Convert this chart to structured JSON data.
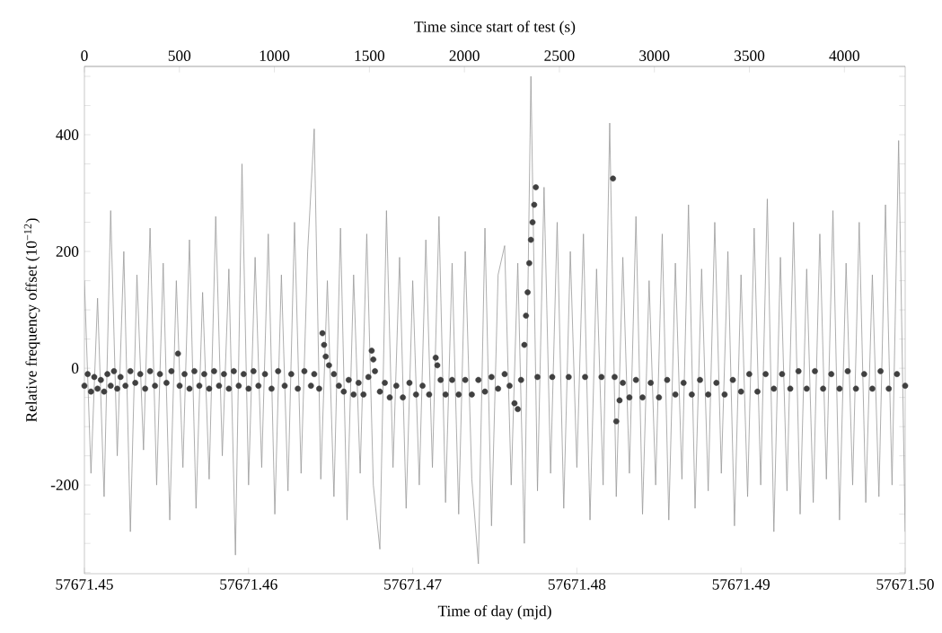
{
  "chart_data": {
    "type": "line",
    "xlabel": "Time of day (mjd)",
    "ylabel": "Relative frequency offset (10$^{−12}$)",
    "x2label": "Time since start of test (s)",
    "xlim": [
      57671.45,
      57671.5
    ],
    "xticks": [
      57671.45,
      57671.46,
      57671.47,
      57671.48,
      57671.49,
      {
        "value": 57671.5,
        "label": "57671.50"
      }
    ],
    "x2lim": [
      0,
      4320
    ],
    "x2ticks": [
      0,
      500,
      1000,
      1500,
      2000,
      2500,
      3000,
      3500,
      4000
    ],
    "ylim": [
      -352,
      517
    ],
    "yticks": [
      {
        "value": -350,
        "label": null
      },
      {
        "value": -300,
        "label": null
      },
      {
        "value": -250,
        "label": null
      },
      -200,
      {
        "value": -150,
        "label": null
      },
      {
        "value": -100,
        "label": null
      },
      {
        "value": -50,
        "label": null
      },
      0,
      {
        "value": 50,
        "label": null
      },
      {
        "value": 100,
        "label": null
      },
      {
        "value": 150,
        "label": null
      },
      200,
      {
        "value": 250,
        "label": null
      },
      {
        "value": 300,
        "label": null
      },
      {
        "value": 350,
        "label": null
      },
      400,
      {
        "value": 450,
        "label": null
      },
      {
        "value": 500,
        "label": null
      }
    ],
    "series": [
      {
        "color": "#999999",
        "line_style": "solid",
        "x": [
          57671.45,
          57671.4504,
          57671.4508,
          57671.4512,
          57671.4516,
          57671.452,
          57671.4524,
          57671.4528,
          57671.4532,
          57671.4536,
          57671.454,
          57671.4544,
          57671.4548,
          57671.4552,
          57671.4556,
          57671.456,
          57671.4564,
          57671.4568,
          57671.4572,
          57671.4576,
          57671.458,
          57671.4584,
          57671.4588,
          57671.4592,
          57671.4596,
          57671.46,
          57671.4604,
          57671.4608,
          57671.4612,
          57671.4616,
          57671.462,
          57671.4624,
          57671.4628,
          57671.4632,
          57671.4636,
          57671.464,
          57671.4644,
          57671.4648,
          57671.4652,
          57671.4656,
          57671.466,
          57671.4664,
          57671.4668,
          57671.4672,
          57671.4676,
          57671.468,
          57671.4684,
          57671.4688,
          57671.4692,
          57671.4696,
          57671.47,
          57671.4704,
          57671.4708,
          57671.4712,
          57671.4716,
          57671.472,
          57671.4724,
          57671.4728,
          57671.4732,
          57671.4736,
          57671.474,
          57671.4744,
          57671.4748,
          57671.4752,
          57671.4756,
          57671.476,
          57671.4764,
          57671.4768,
          57671.4772,
          57671.4776,
          57671.478,
          57671.4784,
          57671.4788,
          57671.4792,
          57671.4796,
          57671.48,
          57671.4804,
          57671.4808,
          57671.4812,
          57671.4816,
          57671.482,
          57671.4824,
          57671.4828,
          57671.4832,
          57671.4836,
          57671.484,
          57671.4844,
          57671.4848,
          57671.4852,
          57671.4856,
          57671.486,
          57671.4864,
          57671.4868,
          57671.4872,
          57671.4876,
          57671.488,
          57671.4884,
          57671.4888,
          57671.4892,
          57671.4896,
          57671.49,
          57671.4904,
          57671.4908,
          57671.4912,
          57671.4916,
          57671.492,
          57671.4924,
          57671.4928,
          57671.4932,
          57671.4936,
          57671.494,
          57671.4944,
          57671.4948,
          57671.4952,
          57671.4956,
          57671.496,
          57671.4964,
          57671.4968,
          57671.4972,
          57671.4976,
          57671.498,
          57671.4984,
          57671.4988,
          57671.4992,
          57671.4996,
          57671.5
        ],
        "values": [
          150,
          -180,
          120,
          -220,
          270,
          -150,
          200,
          -280,
          160,
          -140,
          240,
          -200,
          180,
          -260,
          150,
          -170,
          220,
          -240,
          130,
          -190,
          260,
          -150,
          170,
          -320,
          350,
          -200,
          190,
          -170,
          230,
          -250,
          160,
          -210,
          250,
          -180,
          200,
          410,
          -190,
          150,
          -220,
          240,
          -260,
          160,
          -180,
          230,
          -200,
          -310,
          270,
          -170,
          190,
          -240,
          150,
          -200,
          220,
          -170,
          260,
          -230,
          180,
          -250,
          200,
          -190,
          -335,
          240,
          -270,
          160,
          210,
          -200,
          180,
          -300,
          500,
          -210,
          310,
          -180,
          250,
          -240,
          200,
          -170,
          230,
          -260,
          170,
          -200,
          420,
          -220,
          190,
          -180,
          260,
          -250,
          150,
          -200,
          230,
          -260,
          180,
          -190,
          280,
          -240,
          170,
          -210,
          250,
          -180,
          200,
          -270,
          160,
          -220,
          240,
          -200,
          290,
          -280,
          190,
          -210,
          250,
          -250,
          170,
          -230,
          230,
          -190,
          270,
          -260,
          180,
          -200,
          250,
          -230,
          160,
          -220,
          280,
          -200,
          390,
          -280
        ]
      },
      {
        "type": "scatter",
        "color": "#404040",
        "marker": "circle",
        "x": [
          57671.45,
          57671.4502,
          57671.4504,
          57671.4506,
          57671.4508,
          57671.451,
          57671.4512,
          57671.4514,
          57671.4516,
          57671.4518,
          57671.452,
          57671.4522,
          57671.4525,
          57671.4528,
          57671.4531,
          57671.4534,
          57671.4537,
          57671.454,
          57671.4543,
          57671.4546,
          57671.455,
          57671.4553,
          57671.4557,
          57671.4558,
          57671.4561,
          57671.4564,
          57671.4567,
          57671.457,
          57671.4573,
          57671.4576,
          57671.4579,
          57671.4582,
          57671.4585,
          57671.4588,
          57671.4591,
          57671.4594,
          57671.4597,
          57671.46,
          57671.4603,
          57671.4606,
          57671.461,
          57671.4614,
          57671.4618,
          57671.4622,
          57671.4626,
          57671.463,
          57671.4634,
          57671.4638,
          57671.464,
          57671.4643,
          57671.4645,
          57671.4646,
          57671.4647,
          57671.4649,
          57671.4652,
          57671.4655,
          57671.4658,
          57671.4661,
          57671.4664,
          57671.4667,
          57671.467,
          57671.4673,
          57671.4675,
          57671.4676,
          57671.4677,
          57671.468,
          57671.4683,
          57671.4686,
          57671.469,
          57671.4694,
          57671.4698,
          57671.4702,
          57671.4706,
          57671.471,
          57671.4714,
          57671.4715,
          57671.4717,
          57671.472,
          57671.4724,
          57671.4728,
          57671.4732,
          57671.4736,
          57671.474,
          57671.4744,
          57671.4748,
          57671.4752,
          57671.4756,
          57671.4759,
          57671.4762,
          57671.4764,
          57671.4766,
          57671.4768,
          57671.4769,
          57671.477,
          57671.4771,
          57671.4772,
          57671.4773,
          57671.4774,
          57671.4775,
          57671.4776,
          57671.4785,
          57671.4795,
          57671.4805,
          57671.4815,
          57671.4822,
          57671.4823,
          57671.4824,
          57671.4826,
          57671.4828,
          57671.4832,
          57671.4836,
          57671.484,
          57671.4845,
          57671.485,
          57671.4855,
          57671.486,
          57671.4865,
          57671.487,
          57671.4875,
          57671.488,
          57671.4885,
          57671.489,
          57671.4895,
          57671.49,
          57671.4905,
          57671.491,
          57671.4915,
          57671.492,
          57671.4925,
          57671.493,
          57671.4935,
          57671.494,
          57671.4945,
          57671.495,
          57671.4955,
          57671.496,
          57671.4965,
          57671.497,
          57671.4975,
          57671.498,
          57671.4985,
          57671.499,
          57671.4995,
          57671.5
        ],
        "values": [
          -30,
          -10,
          -40,
          -15,
          -35,
          -20,
          -40,
          -10,
          -30,
          -5,
          -35,
          -15,
          -30,
          -5,
          -25,
          -10,
          -35,
          -5,
          -30,
          -10,
          -25,
          -5,
          25,
          -30,
          -10,
          -35,
          -5,
          -30,
          -10,
          -35,
          -5,
          -30,
          -10,
          -35,
          -5,
          -30,
          -10,
          -35,
          -5,
          -30,
          -10,
          -35,
          -5,
          -30,
          -10,
          -35,
          -5,
          -30,
          -10,
          -35,
          60,
          40,
          20,
          5,
          -10,
          -30,
          -40,
          -20,
          -45,
          -25,
          -45,
          -15,
          30,
          15,
          -5,
          -40,
          -25,
          -50,
          -30,
          -50,
          -25,
          -45,
          -30,
          -45,
          18,
          5,
          -20,
          -45,
          -20,
          -45,
          -20,
          -45,
          -20,
          -40,
          -15,
          -35,
          -10,
          -30,
          -60,
          -70,
          -20,
          40,
          90,
          130,
          180,
          220,
          250,
          280,
          310,
          -15,
          -15,
          -15,
          -15,
          -15,
          325,
          -15,
          -91,
          -55,
          -25,
          -50,
          -20,
          -50,
          -25,
          -50,
          -20,
          -45,
          -25,
          -45,
          -20,
          -45,
          -25,
          -45,
          -20,
          -40,
          -10,
          -40,
          -10,
          -35,
          -10,
          -35,
          -5,
          -35,
          -5,
          -35,
          -10,
          -35,
          -5,
          -35,
          -10,
          -35,
          -5,
          -35,
          -10,
          -30
        ]
      }
    ]
  }
}
